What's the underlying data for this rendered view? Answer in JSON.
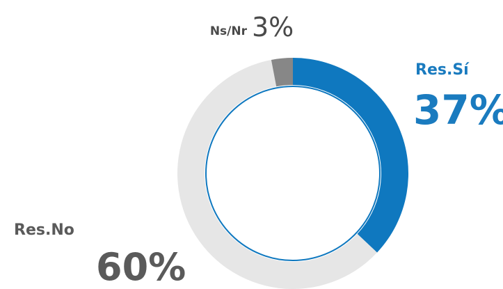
{
  "chart_data": {
    "type": "donut",
    "categories": [
      "Res.Sí",
      "Res.No",
      "Ns/Nr"
    ],
    "values": [
      37,
      60,
      3
    ],
    "value_labels": [
      "37%",
      "60%",
      "3%"
    ],
    "colors": [
      "#0f78bf",
      "#e6e6e6",
      "#878787"
    ]
  }
}
